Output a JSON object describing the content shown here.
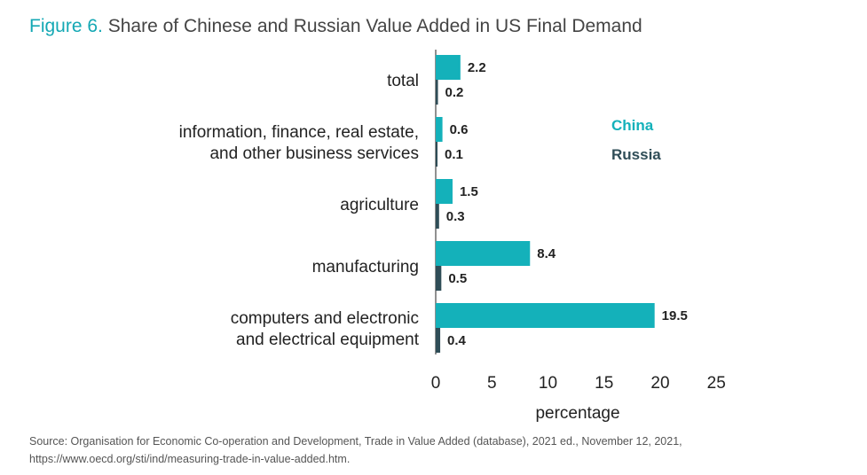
{
  "title": {
    "figure_label": "Figure 6.",
    "text": "Share of Chinese and Russian Value Added in US Final Demand"
  },
  "source": "Source: Organisation for Economic Co-operation and Development, Trade in Value Added (database), 2021 ed., November 12, 2021, https://www.oecd.org/sti/ind/measuring-trade-in-value-added.htm.",
  "colors": {
    "china": "#14b1ba",
    "russia": "#2f4d57",
    "axis": "#222222",
    "title_accent": "#14a8b4"
  },
  "chart_data": {
    "type": "bar",
    "orientation": "horizontal",
    "title": "Share of Chinese and Russian Value Added in US Final Demand",
    "xlabel": "percentage",
    "ylabel": "",
    "xlim": [
      0,
      25
    ],
    "xticks": [
      0,
      5,
      10,
      15,
      20,
      25
    ],
    "grid": false,
    "legend_placement": "right",
    "categories": [
      [
        "total"
      ],
      [
        "information, finance, real estate,",
        "and other business services"
      ],
      [
        "agriculture"
      ],
      [
        "manufacturing"
      ],
      [
        "computers and electronic",
        "and electrical equipment"
      ]
    ],
    "series": [
      {
        "name": "China",
        "color": "#14b1ba",
        "values": [
          2.2,
          0.6,
          1.5,
          8.4,
          19.5
        ]
      },
      {
        "name": "Russia",
        "color": "#2f4d57",
        "values": [
          0.2,
          0.1,
          0.3,
          0.5,
          0.4
        ]
      }
    ]
  }
}
